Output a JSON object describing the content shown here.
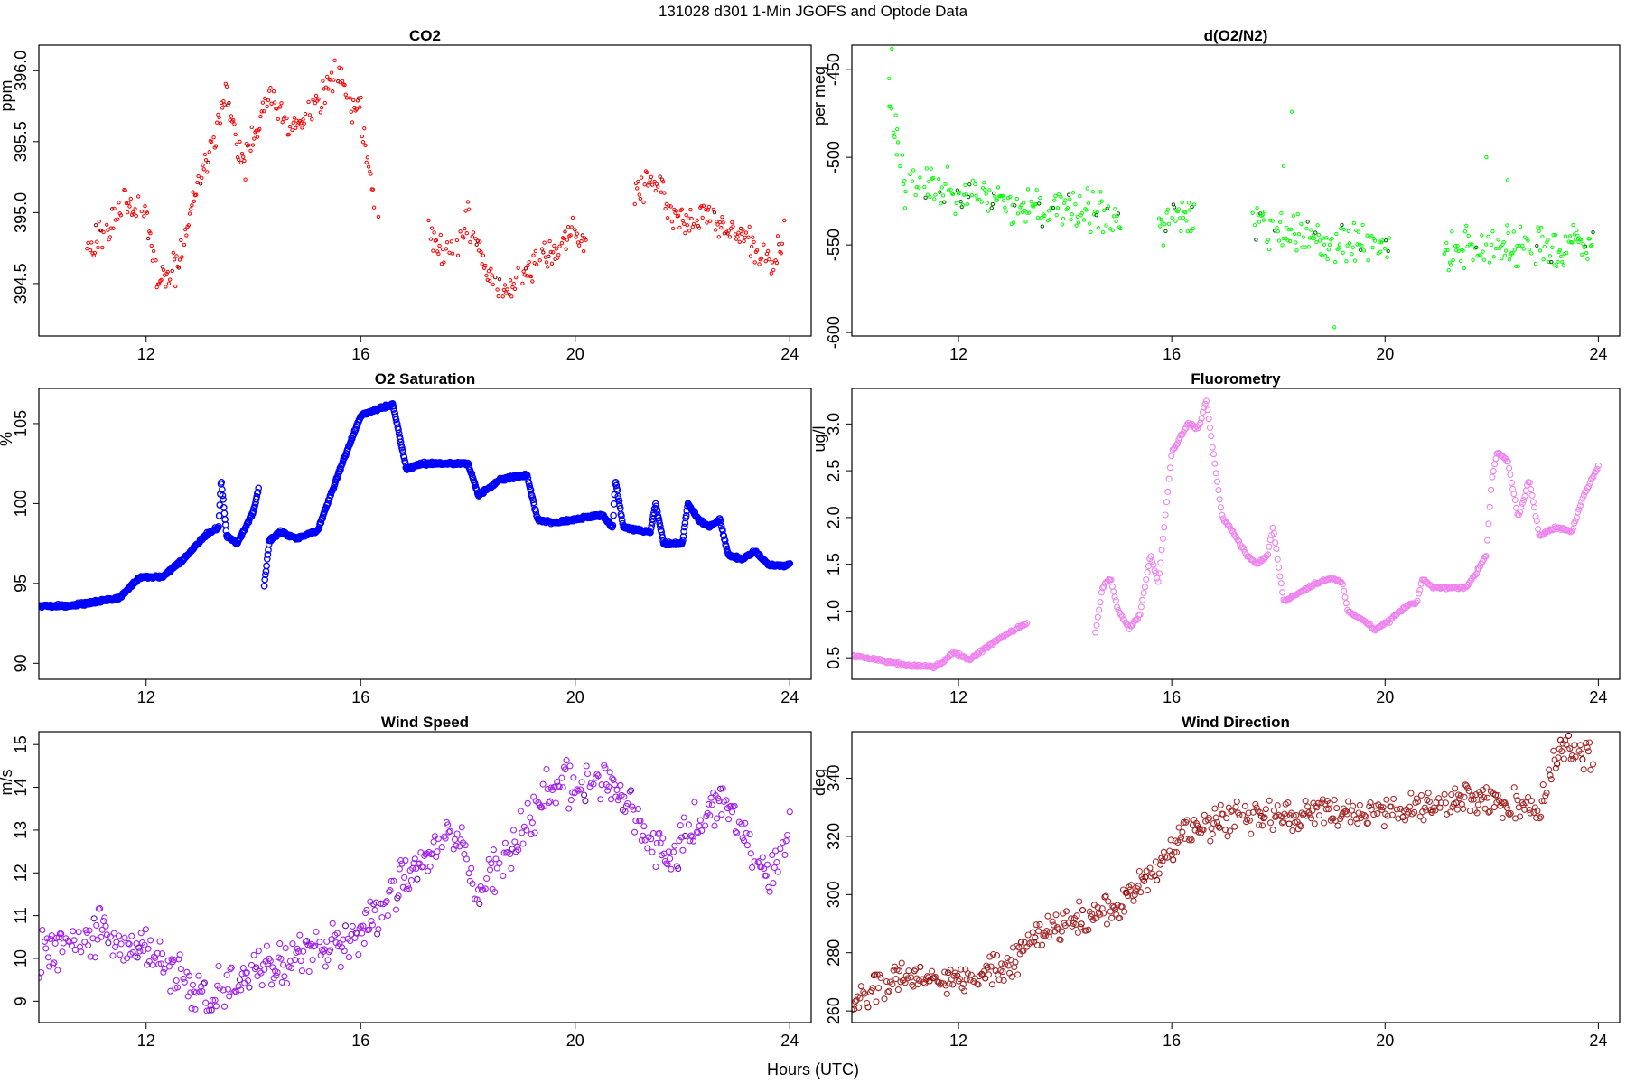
{
  "figure": {
    "title": "131028   d301   1-Min  JGOFS and Optode Data",
    "xlabel": "Hours (UTC)"
  },
  "chart_data": [
    {
      "id": "co2",
      "type": "scatter",
      "title": "CO2",
      "ylabel": "ppm",
      "color": "#ff0000",
      "dark_color": "#8b0000",
      "marker": "small",
      "xlim": [
        10.0,
        24.4
      ],
      "ylim": [
        394.13,
        396.18
      ],
      "xticks": [
        12,
        16,
        20,
        24
      ],
      "yticks": [
        394.5,
        395.0,
        395.5,
        396.0
      ],
      "ytick_labels": [
        "394.5",
        "395.0",
        "395.5",
        "396.0"
      ],
      "gaps": [
        [
          16.35,
          17.25
        ],
        [
          20.2,
          21.1
        ]
      ],
      "seed": 11,
      "noise": 0.09,
      "points": [
        [
          10.9,
          394.8
        ],
        [
          11.0,
          394.78
        ],
        [
          11.2,
          394.88
        ],
        [
          11.5,
          395.0
        ],
        [
          11.6,
          395.12
        ],
        [
          11.75,
          395.0
        ],
        [
          11.9,
          395.05
        ],
        [
          12.0,
          395.08
        ],
        [
          12.1,
          394.7
        ],
        [
          12.2,
          394.5
        ],
        [
          12.4,
          394.55
        ],
        [
          12.55,
          394.6
        ],
        [
          12.7,
          394.8
        ],
        [
          12.9,
          395.1
        ],
        [
          13.1,
          395.3
        ],
        [
          13.3,
          395.6
        ],
        [
          13.5,
          395.85
        ],
        [
          13.65,
          395.55
        ],
        [
          13.8,
          395.3
        ],
        [
          14.0,
          395.5
        ],
        [
          14.2,
          395.75
        ],
        [
          14.4,
          395.8
        ],
        [
          14.6,
          395.6
        ],
        [
          14.8,
          395.6
        ],
        [
          15.1,
          395.72
        ],
        [
          15.6,
          396.02
        ],
        [
          15.8,
          395.75
        ],
        [
          16.0,
          395.7
        ],
        [
          16.2,
          395.2
        ],
        [
          16.3,
          395.05
        ],
        [
          17.3,
          394.9
        ],
        [
          17.5,
          394.7
        ],
        [
          17.8,
          394.8
        ],
        [
          18.0,
          394.95
        ],
        [
          18.2,
          394.75
        ],
        [
          18.4,
          394.55
        ],
        [
          18.6,
          394.45
        ],
        [
          18.8,
          394.5
        ],
        [
          19.0,
          394.55
        ],
        [
          19.2,
          394.6
        ],
        [
          19.4,
          394.7
        ],
        [
          19.6,
          394.75
        ],
        [
          19.8,
          394.8
        ],
        [
          20.0,
          394.85
        ],
        [
          20.15,
          394.75
        ],
        [
          21.1,
          395.1
        ],
        [
          21.3,
          395.2
        ],
        [
          21.5,
          395.25
        ],
        [
          21.7,
          395.05
        ],
        [
          21.9,
          394.98
        ],
        [
          22.1,
          394.9
        ],
        [
          22.4,
          395.0
        ],
        [
          22.6,
          394.92
        ],
        [
          22.9,
          394.88
        ],
        [
          23.2,
          394.78
        ],
        [
          23.5,
          394.65
        ],
        [
          23.7,
          394.68
        ],
        [
          23.9,
          394.85
        ]
      ]
    },
    {
      "id": "do2n2",
      "type": "scatter",
      "title": "d(O2/N2)",
      "ylabel": "per meg",
      "color": "#00ff00",
      "dark_color": "#006400",
      "marker": "small",
      "xlim": [
        10.0,
        24.4
      ],
      "ylim": [
        -602,
        -436
      ],
      "xticks": [
        12,
        16,
        20,
        24
      ],
      "yticks": [
        -600,
        -550,
        -500,
        -450
      ],
      "ytick_labels": [
        "-600",
        "-550",
        "-500",
        "-450"
      ],
      "gaps": [
        [
          15.05,
          15.75
        ],
        [
          16.45,
          17.5
        ],
        [
          20.1,
          21.1
        ]
      ],
      "seed": 23,
      "noise": 9,
      "points": [
        [
          10.7,
          -470
        ],
        [
          10.8,
          -480
        ],
        [
          10.9,
          -500
        ],
        [
          11.0,
          -515
        ],
        [
          11.5,
          -518
        ],
        [
          12.0,
          -520
        ],
        [
          12.5,
          -522
        ],
        [
          13.0,
          -525
        ],
        [
          13.5,
          -528
        ],
        [
          14.0,
          -530
        ],
        [
          14.5,
          -531
        ],
        [
          15.0,
          -533
        ],
        [
          15.8,
          -538
        ],
        [
          16.2,
          -535
        ],
        [
          16.4,
          -535
        ],
        [
          17.5,
          -540
        ],
        [
          18.0,
          -542
        ],
        [
          18.5,
          -545
        ],
        [
          19.0,
          -548
        ],
        [
          19.5,
          -550
        ],
        [
          20.0,
          -550
        ],
        [
          21.1,
          -550
        ],
        [
          21.5,
          -552
        ],
        [
          22.0,
          -552
        ],
        [
          22.5,
          -550
        ],
        [
          23.0,
          -550
        ],
        [
          23.5,
          -551
        ],
        [
          23.9,
          -548
        ]
      ],
      "outliers": [
        [
          10.75,
          -438
        ],
        [
          10.7,
          -455
        ],
        [
          18.25,
          -474
        ],
        [
          18.1,
          -505
        ],
        [
          21.9,
          -500
        ],
        [
          19.05,
          -597
        ],
        [
          22.3,
          -513
        ],
        [
          10.85,
          -484
        ],
        [
          11.0,
          -529
        ]
      ]
    },
    {
      "id": "o2sat",
      "type": "line-scatter",
      "title": "O2 Saturation",
      "ylabel": "%",
      "color": "#0000ff",
      "dark_color": "#00008b",
      "marker": "ring",
      "thick": true,
      "xlim": [
        10.0,
        24.4
      ],
      "ylim": [
        89.0,
        107.2
      ],
      "xticks": [
        12,
        16,
        20,
        24
      ],
      "yticks": [
        90,
        95,
        100,
        105
      ],
      "ytick_labels": [
        "90",
        "95",
        "100",
        "105"
      ],
      "gaps": [
        [
          14.1,
          14.2
        ]
      ],
      "seed": 5,
      "noise": 0.12,
      "points": [
        [
          10.0,
          93.6
        ],
        [
          10.5,
          93.6
        ],
        [
          11.0,
          93.8
        ],
        [
          11.5,
          94.1
        ],
        [
          11.9,
          95.4
        ],
        [
          12.3,
          95.4
        ],
        [
          12.7,
          96.5
        ],
        [
          13.1,
          98.0
        ],
        [
          13.35,
          98.5
        ],
        [
          13.4,
          101.5
        ],
        [
          13.5,
          98.0
        ],
        [
          13.7,
          97.5
        ],
        [
          14.0,
          99.5
        ],
        [
          14.1,
          101.0
        ],
        [
          14.2,
          94.8
        ],
        [
          14.3,
          97.7
        ],
        [
          14.5,
          98.2
        ],
        [
          14.8,
          97.8
        ],
        [
          15.2,
          98.3
        ],
        [
          15.6,
          102.0
        ],
        [
          16.0,
          105.5
        ],
        [
          16.4,
          106.0
        ],
        [
          16.6,
          106.2
        ],
        [
          16.85,
          102.2
        ],
        [
          17.2,
          102.5
        ],
        [
          17.6,
          102.5
        ],
        [
          18.0,
          102.5
        ],
        [
          18.2,
          100.5
        ],
        [
          18.6,
          101.5
        ],
        [
          19.1,
          101.8
        ],
        [
          19.3,
          99.0
        ],
        [
          19.6,
          98.8
        ],
        [
          20.0,
          99.0
        ],
        [
          20.5,
          99.3
        ],
        [
          20.7,
          98.5
        ],
        [
          20.75,
          101.5
        ],
        [
          20.9,
          98.5
        ],
        [
          21.4,
          98.2
        ],
        [
          21.5,
          100.0
        ],
        [
          21.65,
          97.5
        ],
        [
          22.0,
          97.5
        ],
        [
          22.1,
          100.0
        ],
        [
          22.3,
          99.0
        ],
        [
          22.5,
          98.5
        ],
        [
          22.7,
          99.0
        ],
        [
          22.85,
          96.8
        ],
        [
          23.1,
          96.5
        ],
        [
          23.35,
          97.0
        ],
        [
          23.6,
          96.2
        ],
        [
          23.9,
          96.1
        ],
        [
          24.0,
          96.2
        ]
      ]
    },
    {
      "id": "fluor",
      "type": "line-scatter",
      "title": "Fluorometry",
      "ylabel": "ug/l",
      "color": "#ee82ee",
      "dark_color": "#c71585",
      "marker": "ring",
      "xlim": [
        10.0,
        24.4
      ],
      "ylim": [
        0.27,
        3.38
      ],
      "xticks": [
        12,
        16,
        20,
        24
      ],
      "yticks": [
        0.5,
        1.0,
        1.5,
        2.0,
        2.5,
        3.0
      ],
      "ytick_labels": [
        "0.5",
        "1.0",
        "1.5",
        "2.0",
        "2.5",
        "3.0"
      ],
      "gaps": [
        [
          13.3,
          14.55
        ]
      ],
      "seed": 7,
      "noise": 0.02,
      "points": [
        [
          10.0,
          0.52
        ],
        [
          10.5,
          0.48
        ],
        [
          11.0,
          0.42
        ],
        [
          11.5,
          0.4
        ],
        [
          11.7,
          0.45
        ],
        [
          11.9,
          0.56
        ],
        [
          12.2,
          0.48
        ],
        [
          12.5,
          0.6
        ],
        [
          12.9,
          0.75
        ],
        [
          13.3,
          0.88
        ],
        [
          14.55,
          0.7
        ],
        [
          14.7,
          1.25
        ],
        [
          14.85,
          1.35
        ],
        [
          15.0,
          1.0
        ],
        [
          15.2,
          0.82
        ],
        [
          15.4,
          0.95
        ],
        [
          15.6,
          1.6
        ],
        [
          15.75,
          1.3
        ],
        [
          16.0,
          2.7
        ],
        [
          16.3,
          3.0
        ],
        [
          16.5,
          2.95
        ],
        [
          16.65,
          3.25
        ],
        [
          16.8,
          2.6
        ],
        [
          16.95,
          2.0
        ],
        [
          17.2,
          1.8
        ],
        [
          17.4,
          1.6
        ],
        [
          17.6,
          1.5
        ],
        [
          17.8,
          1.6
        ],
        [
          17.9,
          1.9
        ],
        [
          18.1,
          1.1
        ],
        [
          18.4,
          1.2
        ],
        [
          18.7,
          1.3
        ],
        [
          19.0,
          1.35
        ],
        [
          19.2,
          1.3
        ],
        [
          19.3,
          1.0
        ],
        [
          19.6,
          0.9
        ],
        [
          19.8,
          0.8
        ],
        [
          20.1,
          0.9
        ],
        [
          20.4,
          1.05
        ],
        [
          20.6,
          1.1
        ],
        [
          20.7,
          1.35
        ],
        [
          20.9,
          1.25
        ],
        [
          21.5,
          1.25
        ],
        [
          21.7,
          1.4
        ],
        [
          21.9,
          1.6
        ],
        [
          22.0,
          2.4
        ],
        [
          22.1,
          2.7
        ],
        [
          22.3,
          2.6
        ],
        [
          22.5,
          2.0
        ],
        [
          22.7,
          2.4
        ],
        [
          22.9,
          1.8
        ],
        [
          23.2,
          1.9
        ],
        [
          23.5,
          1.85
        ],
        [
          23.7,
          2.2
        ],
        [
          24.0,
          2.55
        ]
      ]
    },
    {
      "id": "wspd",
      "type": "scatter",
      "title": "Wind Speed",
      "ylabel": "m/s",
      "color": "#a020f0",
      "dark_color": "#6a0dad",
      "marker": "ring",
      "xlim": [
        10.0,
        24.4
      ],
      "ylim": [
        8.5,
        15.3
      ],
      "xticks": [
        12,
        16,
        20,
        24
      ],
      "yticks": [
        9,
        10,
        11,
        12,
        13,
        14,
        15
      ],
      "ytick_labels": [
        "9",
        "10",
        "11",
        "12",
        "13",
        "14",
        "15"
      ],
      "gaps": [],
      "seed": 31,
      "noise": 0.4,
      "points": [
        [
          10.0,
          10.1
        ],
        [
          10.5,
          10.2
        ],
        [
          11.0,
          10.6
        ],
        [
          11.3,
          10.5
        ],
        [
          11.7,
          10.2
        ],
        [
          12.0,
          10.1
        ],
        [
          12.5,
          9.7
        ],
        [
          12.8,
          9.4
        ],
        [
          13.1,
          9.1
        ],
        [
          13.4,
          9.3
        ],
        [
          13.8,
          9.6
        ],
        [
          14.2,
          9.9
        ],
        [
          14.6,
          9.9
        ],
        [
          15.0,
          10.1
        ],
        [
          15.5,
          10.3
        ],
        [
          16.0,
          10.7
        ],
        [
          16.4,
          11.2
        ],
        [
          16.8,
          11.8
        ],
        [
          17.2,
          12.2
        ],
        [
          17.6,
          12.9
        ],
        [
          17.9,
          12.7
        ],
        [
          18.1,
          11.6
        ],
        [
          18.5,
          12.0
        ],
        [
          18.8,
          12.5
        ],
        [
          19.2,
          13.3
        ],
        [
          19.6,
          14.1
        ],
        [
          20.0,
          14.0
        ],
        [
          20.4,
          14.3
        ],
        [
          20.8,
          13.9
        ],
        [
          21.2,
          13.0
        ],
        [
          21.6,
          12.6
        ],
        [
          21.9,
          12.5
        ],
        [
          22.3,
          13.2
        ],
        [
          22.7,
          13.8
        ],
        [
          23.0,
          13.3
        ],
        [
          23.3,
          12.3
        ],
        [
          23.6,
          12.0
        ],
        [
          24.0,
          12.9
        ]
      ]
    },
    {
      "id": "wdir",
      "type": "scatter",
      "title": "Wind Direction",
      "ylabel": "deg",
      "color": "#a52a2a",
      "dark_color": "#8b0000",
      "marker": "ring",
      "xlim": [
        10.0,
        24.4
      ],
      "ylim": [
        256,
        356
      ],
      "xticks": [
        12,
        16,
        20,
        24
      ],
      "yticks": [
        260,
        280,
        300,
        320,
        340
      ],
      "ytick_labels": [
        "260",
        "280",
        "300",
        "320",
        "340"
      ],
      "gaps": [],
      "seed": 43,
      "noise": 4,
      "points": [
        [
          10.0,
          264
        ],
        [
          10.5,
          268
        ],
        [
          11.0,
          272
        ],
        [
          11.5,
          272
        ],
        [
          12.0,
          270
        ],
        [
          12.5,
          272
        ],
        [
          13.0,
          276
        ],
        [
          13.3,
          283
        ],
        [
          13.6,
          287
        ],
        [
          14.0,
          290
        ],
        [
          14.5,
          293
        ],
        [
          15.0,
          297
        ],
        [
          15.3,
          301
        ],
        [
          15.6,
          306
        ],
        [
          15.9,
          314
        ],
        [
          16.2,
          321
        ],
        [
          16.6,
          323
        ],
        [
          17.0,
          326
        ],
        [
          17.5,
          327
        ],
        [
          18.0,
          327
        ],
        [
          18.5,
          328
        ],
        [
          19.0,
          328
        ],
        [
          19.5,
          328
        ],
        [
          20.0,
          329
        ],
        [
          20.5,
          330
        ],
        [
          21.0,
          331
        ],
        [
          21.5,
          333
        ],
        [
          22.0,
          332
        ],
        [
          22.5,
          331
        ],
        [
          22.9,
          328
        ],
        [
          23.05,
          342
        ],
        [
          23.3,
          350
        ],
        [
          23.6,
          349
        ],
        [
          23.9,
          348
        ]
      ]
    }
  ]
}
